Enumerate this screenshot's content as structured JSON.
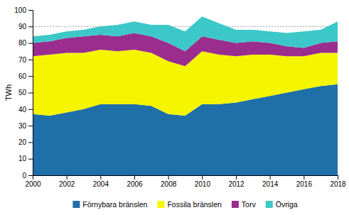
{
  "chart_data": {
    "type": "area",
    "stacked": true,
    "ylabel": "TWh",
    "x": [
      2000,
      2001,
      2002,
      2003,
      2004,
      2005,
      2006,
      2007,
      2008,
      2009,
      2010,
      2011,
      2012,
      2013,
      2014,
      2015,
      2016,
      2017,
      2018
    ],
    "series": [
      {
        "name": "Förnybara bränslen",
        "color": "#1f6fa8",
        "values": [
          37,
          36,
          38,
          40,
          43,
          43,
          43,
          42,
          37,
          36,
          43,
          43,
          44,
          46,
          48,
          50,
          52,
          54,
          55
        ]
      },
      {
        "name": "Fossila bränslen",
        "color": "#f5f500",
        "values": [
          35,
          37,
          36,
          34,
          33,
          32,
          33,
          32,
          32,
          30,
          32,
          30,
          28,
          27,
          25,
          22,
          20,
          20,
          19
        ]
      },
      {
        "name": "Torv",
        "color": "#9b2d8e",
        "values": [
          8,
          8,
          9,
          10,
          9,
          9,
          10,
          10,
          11,
          9,
          9,
          9,
          8,
          8,
          7,
          6,
          5,
          6,
          7
        ]
      },
      {
        "name": "Övriga",
        "color": "#3cc8c8",
        "values": [
          4,
          4,
          4,
          4,
          5,
          7,
          7,
          7,
          11,
          12,
          12,
          10,
          8,
          7,
          7,
          8,
          10,
          8,
          12
        ]
      }
    ],
    "xlim": [
      2000,
      2018
    ],
    "ylim": [
      0,
      100
    ],
    "xticks": [
      2000,
      2002,
      2004,
      2006,
      2008,
      2010,
      2012,
      2014,
      2016,
      2018
    ],
    "yticks": [
      0,
      10,
      20,
      30,
      40,
      50,
      60,
      70,
      80,
      90,
      100
    ],
    "hlines": [
      90
    ],
    "grid": false,
    "legend": "bottom"
  }
}
